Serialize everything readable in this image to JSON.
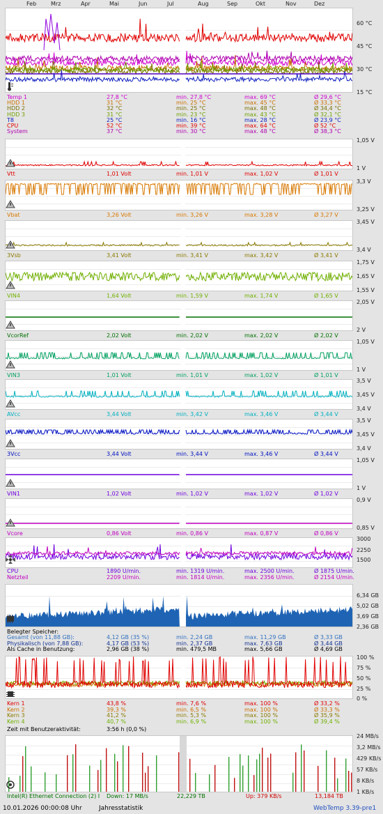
{
  "months": [
    "Feb",
    "Mrz",
    "Apr",
    "Mai",
    "Jun",
    "Jul",
    "Aug",
    "Sep",
    "Okt",
    "Nov",
    "Dez"
  ],
  "temp": {
    "ylabels": [
      "60 °C",
      "45 °C",
      "30 °C",
      "15 °C"
    ],
    "rows": [
      {
        "name": "Temp 1",
        "cur": "27,8 °C",
        "min": "min. 27,8 °C",
        "max": "max. 69 °C",
        "avg": "Ø 29,6 °C",
        "color": "#d000d0"
      },
      {
        "name": "HDD 1",
        "cur": "31 °C",
        "min": "min. 25 °C",
        "max": "max. 45 °C",
        "avg": "Ø 33,3 °C",
        "color": "#c87000"
      },
      {
        "name": "HDD 2",
        "cur": "32 °C",
        "min": "min. 25 °C",
        "max": "max. 48 °C",
        "avg": "Ø 34,4 °C",
        "color": "#7a7000"
      },
      {
        "name": "HDD 3",
        "cur": "31 °C",
        "min": "min. 23 °C",
        "max": "max. 43 °C",
        "avg": "Ø 32,1 °C",
        "color": "#70a000"
      },
      {
        "name": "T8",
        "cur": "25 °C",
        "min": "min. 16 °C",
        "max": "max. 28 °C",
        "avg": "Ø 23,9 °C",
        "color": "#1020c0"
      },
      {
        "name": "CPU",
        "cur": "52 °C",
        "min": "min. 39 °C",
        "max": "max. 64 °C",
        "avg": "Ø 52 °C",
        "color": "#e00000"
      },
      {
        "name": "System",
        "cur": "37 °C",
        "min": "min. 30 °C",
        "max": "max. 48 °C",
        "avg": "Ø 38,3 °C",
        "color": "#b000b0"
      }
    ]
  },
  "volts": [
    {
      "name": "Vtt",
      "cur": "1,01 Volt",
      "min": "min. 1,01 V",
      "max": "max. 1,02 V",
      "avg": "Ø 1,01 V",
      "ytop": "1,05 V",
      "ybot": "1 V",
      "color": "#e00000"
    },
    {
      "name": "Vbat",
      "cur": "3,26 Volt",
      "min": "min. 3,26 V",
      "max": "max. 3,28 V",
      "avg": "Ø 3,27 V",
      "ytop": "3,3 V",
      "ybot": "3,25 V",
      "color": "#d87800"
    },
    {
      "name": "3Vsb",
      "cur": "3,41 Volt",
      "min": "min. 3,41 V",
      "max": "max. 3,42 V",
      "avg": "Ø 3,41 V",
      "ytop": "3,45 V",
      "ybot": "3,4 V",
      "color": "#8a7a00"
    },
    {
      "name": "VIN4",
      "cur": "1,64 Volt",
      "min": "min. 1,59 V",
      "max": "max. 1,74 V",
      "avg": "Ø 1,65 V",
      "ytop": "1,75 V",
      "ymid": "1,65 V",
      "ybot": "1,55 V",
      "color": "#70b000"
    },
    {
      "name": "VcorRef",
      "cur": "2,02 Volt",
      "min": "min. 2,02 V",
      "max": "max. 2,02 V",
      "avg": "Ø 2,02 V",
      "ytop": "2,05 V",
      "ybot": "2 V",
      "color": "#007000"
    },
    {
      "name": "VIN3",
      "cur": "1,01 Volt",
      "min": "min. 1,01 V",
      "max": "max. 1,02 V",
      "avg": "Ø 1,01 V",
      "ytop": "1,05 V",
      "ybot": "1 V",
      "color": "#00a060"
    },
    {
      "name": "AVcc",
      "cur": "3,44 Volt",
      "min": "min. 3,42 V",
      "max": "max. 3,46 V",
      "avg": "Ø 3,44 V",
      "ytop": "3,5 V",
      "ymid": "3,45 V",
      "ybot": "3,4 V",
      "color": "#00b0c0"
    },
    {
      "name": "3Vcc",
      "cur": "3,44 Volt",
      "min": "min. 3,44 V",
      "max": "max. 3,46 V",
      "avg": "Ø 3,44 V",
      "ytop": "3,5 V",
      "ymid": "3,45 V",
      "ybot": "3,4 V",
      "color": "#0010c0"
    },
    {
      "name": "VIN1",
      "cur": "1,02 Volt",
      "min": "min. 1,02 V",
      "max": "max. 1,02 V",
      "avg": "Ø 1,02 V",
      "ytop": "1,05 V",
      "ybot": "1 V",
      "color": "#7000e0"
    },
    {
      "name": "Vcore",
      "cur": "0,86 Volt",
      "min": "min. 0,86 V",
      "max": "max. 0,87 V",
      "avg": "Ø 0,86 V",
      "ytop": "0,9 V",
      "ybot": "0,85 V",
      "color": "#c000c0"
    }
  ],
  "fans": {
    "ylabels": [
      "3000",
      "2250",
      "1500"
    ],
    "rows": [
      {
        "name": "CPU",
        "cur": "1890 U/min.",
        "min": "min. 1319 U/min.",
        "max": "max. 2500 U/min.",
        "avg": "Ø 1875 U/min.",
        "color": "#7000e0"
      },
      {
        "name": "Netzteil",
        "cur": "2209 U/min.",
        "min": "min. 1814 U/min.",
        "max": "max. 2356 U/min.",
        "avg": "Ø 2154 U/min.",
        "color": "#c000c0"
      }
    ]
  },
  "memory": {
    "ylabels": [
      "6,34 GB",
      "5,02 GB",
      "3,69 GB",
      "2,36 GB"
    ],
    "title": "Belegter Speicher:",
    "rows": [
      {
        "name": "Gesamt (von 11,88 GB):",
        "cur": "4,12 GB (35 %)",
        "min": "min. 2,24 GB",
        "max": "max. 11,29 GB",
        "avg": "Ø 3,33 GB",
        "color": "#3070c0"
      },
      {
        "name": "Physikalisch (von 7,88 GB):",
        "cur": "4,17 GB (53 %)",
        "min": "min. 2,37 GB",
        "max": "max. 7,63 GB",
        "avg": "Ø 3,44 GB",
        "color": "#103090"
      },
      {
        "name": "Als Cache in Benutzung:",
        "cur": "2,96 GB (38 %)",
        "min": "min. 479,5 MB",
        "max": "max. 5,66 GB",
        "avg": "Ø 4,69 GB",
        "color": "#000000"
      }
    ]
  },
  "cpu": {
    "ylabels": [
      "100 %",
      "75 %",
      "50 %",
      "25 %",
      "0 %"
    ],
    "rows": [
      {
        "name": "Kern 1",
        "cur": "43,8 %",
        "min": "min. 7,6 %",
        "max": "max. 100 %",
        "avg": "Ø 33,2 %",
        "color": "#e00000"
      },
      {
        "name": "Kern 2",
        "cur": "39,3 %",
        "min": "min. 6,5 %",
        "max": "max. 100 %",
        "avg": "Ø 33,3 %",
        "color": "#c87000"
      },
      {
        "name": "Kern 3",
        "cur": "41,2 %",
        "min": "min. 5,3 %",
        "max": "max. 100 %",
        "avg": "Ø 35,9 %",
        "color": "#8a7a00"
      },
      {
        "name": "Kern 4",
        "cur": "40,7 %",
        "min": "min. 6,9 %",
        "max": "max. 100 %",
        "avg": "Ø 39,4 %",
        "color": "#70b000"
      }
    ],
    "activity_label": "Zeit mit Benutzeraktivität:",
    "activity_value": "3:56 h (0,0 %)"
  },
  "network": {
    "ylabels": [
      "24 MB/s",
      "3,2 MB/s",
      "429 KB/s",
      "57 KB/s",
      "8 KB/s",
      "1 KB/s"
    ],
    "adapter": "Intel(R) Ethernet Connection (2) I",
    "down": "Down: 17 MB/s",
    "down_total": "22,229 TB",
    "up": "Up: 379 KB/s",
    "up_total": "13,184 TB"
  },
  "footer": {
    "timestamp": "10.01.2026 00:00:08 Uhr",
    "title": "Jahresstatistik",
    "app": "WebTemp 3.39-pre1"
  },
  "colors": {
    "background": "#e4e4e4",
    "plot_bg": "#ffffff",
    "gridline": "#e0e0e0",
    "net_down": "#c01010",
    "net_up": "#30a030",
    "memory_fill": "#1f64b4"
  }
}
